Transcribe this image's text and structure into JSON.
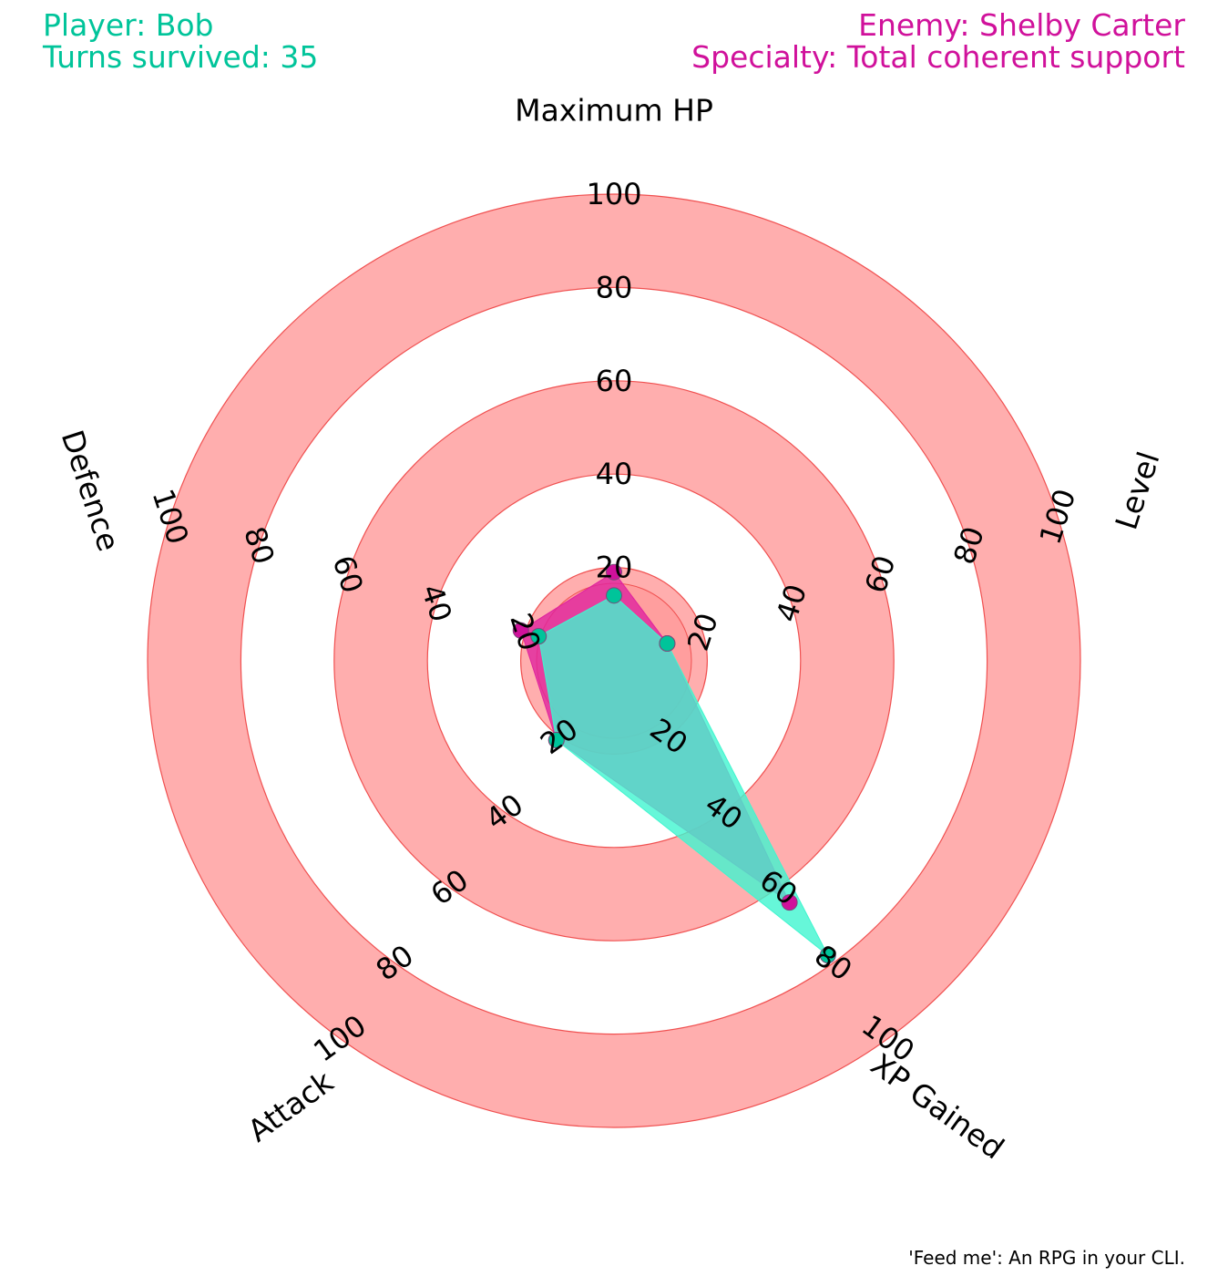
{
  "header": {
    "player_line": "Player: Bob",
    "turns_line": "Turns survived: 35",
    "enemy_line": "Enemy: Shelby Carter",
    "specialty_line": "Specialty: Total coherent support"
  },
  "footer": "'Feed me': An RPG in your CLI.",
  "colors": {
    "player": "#00c49a",
    "player_fill": "#40f5cf",
    "enemy": "#d0119b",
    "enemy_fill": "#e0249e",
    "ring": "#ff9a9a",
    "ring_edge": "#f05050"
  },
  "chart_data": {
    "type": "radar",
    "axes": [
      "Maximum HP",
      "Level",
      "XP Gained",
      "Attack",
      "Defence"
    ],
    "rlim": [
      0,
      100
    ],
    "ticks": [
      20,
      40,
      60,
      80,
      100
    ],
    "series": [
      {
        "name": "Player: Bob",
        "values": [
          14,
          12,
          78,
          21,
          17
        ]
      },
      {
        "name": "Enemy: Shelby Carter",
        "values": [
          19,
          12,
          64,
          21,
          21
        ]
      }
    ]
  }
}
